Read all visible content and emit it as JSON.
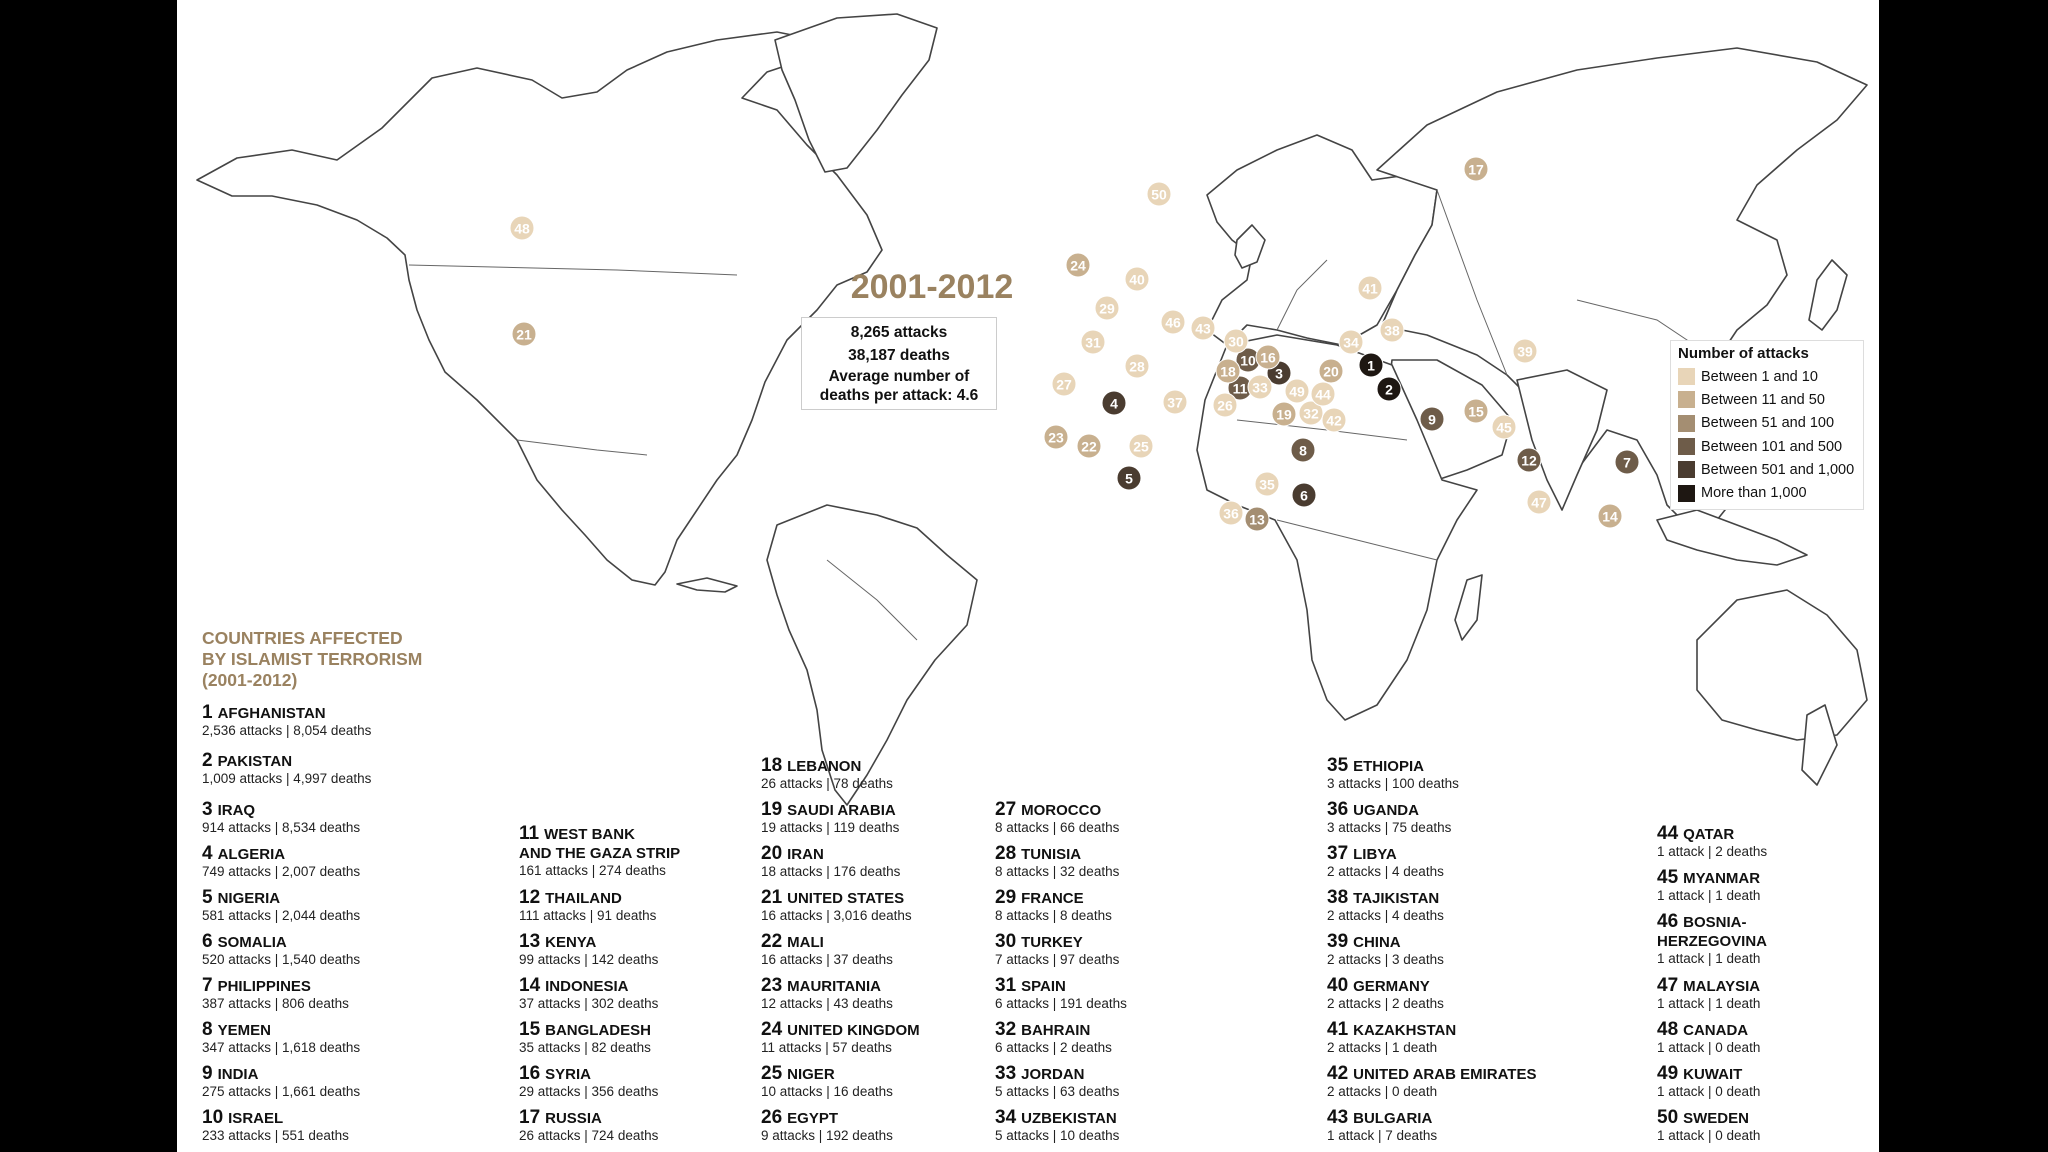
{
  "headline": "2001-2012",
  "stats": {
    "attacks": "8,265 attacks",
    "deaths": "38,187 deaths",
    "avg_line1": "Average number of",
    "avg_line2": "deaths per attack: 4.6"
  },
  "legend": {
    "title": "Number of attacks",
    "items": [
      {
        "label": "Between 1 and 10",
        "color": "#e8d5b8"
      },
      {
        "label": "Between 11 and 50",
        "color": "#c8b08f"
      },
      {
        "label": "Between 51 and 100",
        "color": "#a48e72"
      },
      {
        "label": "Between 101 and 500",
        "color": "#6e5c49"
      },
      {
        "label": "Between 501 and 1,000",
        "color": "#4a3c30"
      },
      {
        "label": "More than 1,000",
        "color": "#1e1712"
      }
    ]
  },
  "list_title": [
    "COUNTRIES AFFECTED",
    "BY ISLAMIST TERRORISM",
    "(2001-2012)"
  ],
  "countries": [
    {
      "rank": "1",
      "name": [
        "AFGHANISTAN"
      ],
      "stats": "2,536 attacks | 8,054 deaths",
      "tier": 5
    },
    {
      "rank": "2",
      "name": [
        "PAKISTAN"
      ],
      "stats": "1,009 attacks | 4,997 deaths",
      "tier": 5
    },
    {
      "rank": "3",
      "name": [
        "IRAQ"
      ],
      "stats": "914 attacks | 8,534 deaths",
      "tier": 4
    },
    {
      "rank": "4",
      "name": [
        "ALGERIA"
      ],
      "stats": "749 attacks | 2,007 deaths",
      "tier": 4
    },
    {
      "rank": "5",
      "name": [
        "NIGERIA"
      ],
      "stats": "581 attacks | 2,044 deaths",
      "tier": 4
    },
    {
      "rank": "6",
      "name": [
        "SOMALIA"
      ],
      "stats": "520 attacks | 1,540 deaths",
      "tier": 4
    },
    {
      "rank": "7",
      "name": [
        "PHILIPPINES"
      ],
      "stats": "387 attacks | 806 deaths",
      "tier": 3
    },
    {
      "rank": "8",
      "name": [
        "YEMEN"
      ],
      "stats": "347 attacks | 1,618 deaths",
      "tier": 3
    },
    {
      "rank": "9",
      "name": [
        "INDIA"
      ],
      "stats": "275 attacks | 1,661 deaths",
      "tier": 3
    },
    {
      "rank": "10",
      "name": [
        "ISRAEL"
      ],
      "stats": "233 attacks | 551 deaths",
      "tier": 3
    },
    {
      "rank": "11",
      "name": [
        "WEST BANK",
        "AND THE GAZA STRIP"
      ],
      "stats": "161 attacks | 274 deaths",
      "tier": 3
    },
    {
      "rank": "12",
      "name": [
        "THAILAND"
      ],
      "stats": "111 attacks | 91 deaths",
      "tier": 3
    },
    {
      "rank": "13",
      "name": [
        "KENYA"
      ],
      "stats": "99 attacks | 142 deaths",
      "tier": 2
    },
    {
      "rank": "14",
      "name": [
        "INDONESIA"
      ],
      "stats": "37 attacks | 302 deaths",
      "tier": 1
    },
    {
      "rank": "15",
      "name": [
        "BANGLADESH"
      ],
      "stats": "35 attacks | 82 deaths",
      "tier": 1
    },
    {
      "rank": "16",
      "name": [
        "SYRIA"
      ],
      "stats": "29 attacks | 356 deaths",
      "tier": 1
    },
    {
      "rank": "17",
      "name": [
        "RUSSIA"
      ],
      "stats": "26 attacks | 724 deaths",
      "tier": 1
    },
    {
      "rank": "18",
      "name": [
        "LEBANON"
      ],
      "stats": "26 attacks | 78 deaths",
      "tier": 1
    },
    {
      "rank": "19",
      "name": [
        "SAUDI ARABIA"
      ],
      "stats": "19 attacks | 119 deaths",
      "tier": 1
    },
    {
      "rank": "20",
      "name": [
        "IRAN"
      ],
      "stats": "18 attacks | 176 deaths",
      "tier": 1
    },
    {
      "rank": "21",
      "name": [
        "UNITED STATES"
      ],
      "stats": "16 attacks | 3,016 deaths",
      "tier": 1
    },
    {
      "rank": "22",
      "name": [
        "MALI"
      ],
      "stats": "16 attacks | 37 deaths",
      "tier": 1
    },
    {
      "rank": "23",
      "name": [
        "MAURITANIA"
      ],
      "stats": "12 attacks | 43 deaths",
      "tier": 1
    },
    {
      "rank": "24",
      "name": [
        "UNITED KINGDOM"
      ],
      "stats": "11 attacks | 57 deaths",
      "tier": 1
    },
    {
      "rank": "25",
      "name": [
        "NIGER"
      ],
      "stats": "10 attacks | 16 deaths",
      "tier": 0
    },
    {
      "rank": "26",
      "name": [
        "EGYPT"
      ],
      "stats": "9 attacks | 192 deaths",
      "tier": 0
    },
    {
      "rank": "27",
      "name": [
        "MOROCCO"
      ],
      "stats": "8 attacks | 66 deaths",
      "tier": 0
    },
    {
      "rank": "28",
      "name": [
        "TUNISIA"
      ],
      "stats": "8 attacks | 32 deaths",
      "tier": 0
    },
    {
      "rank": "29",
      "name": [
        "FRANCE"
      ],
      "stats": "8 attacks | 8 deaths",
      "tier": 0
    },
    {
      "rank": "30",
      "name": [
        "TURKEY"
      ],
      "stats": "7 attacks | 97 deaths",
      "tier": 0
    },
    {
      "rank": "31",
      "name": [
        "SPAIN"
      ],
      "stats": "6 attacks | 191 deaths",
      "tier": 0
    },
    {
      "rank": "32",
      "name": [
        "BAHRAIN"
      ],
      "stats": "6 attacks | 2 deaths",
      "tier": 0
    },
    {
      "rank": "33",
      "name": [
        "JORDAN"
      ],
      "stats": "5 attacks | 63 deaths",
      "tier": 0
    },
    {
      "rank": "34",
      "name": [
        "UZBEKISTAN"
      ],
      "stats": "5 attacks | 10 deaths",
      "tier": 0
    },
    {
      "rank": "35",
      "name": [
        "ETHIOPIA"
      ],
      "stats": "3 attacks | 100 deaths",
      "tier": 0
    },
    {
      "rank": "36",
      "name": [
        "UGANDA"
      ],
      "stats": "3 attacks | 75 deaths",
      "tier": 0
    },
    {
      "rank": "37",
      "name": [
        "LIBYA"
      ],
      "stats": "2 attacks | 4 deaths",
      "tier": 0
    },
    {
      "rank": "38",
      "name": [
        "TAJIKISTAN"
      ],
      "stats": "2 attacks | 4 deaths",
      "tier": 0
    },
    {
      "rank": "39",
      "name": [
        "CHINA"
      ],
      "stats": "2 attacks | 3 deaths",
      "tier": 0
    },
    {
      "rank": "40",
      "name": [
        "GERMANY"
      ],
      "stats": "2 attacks | 2 deaths",
      "tier": 0
    },
    {
      "rank": "41",
      "name": [
        "KAZAKHSTAN"
      ],
      "stats": "2 attacks | 1 death",
      "tier": 0
    },
    {
      "rank": "42",
      "name": [
        "UNITED ARAB EMIRATES"
      ],
      "stats": "2 attacks | 0 death",
      "tier": 0
    },
    {
      "rank": "43",
      "name": [
        "BULGARIA"
      ],
      "stats": "1 attack | 7 deaths",
      "tier": 0
    },
    {
      "rank": "44",
      "name": [
        "QATAR"
      ],
      "stats": "1 attack | 2 deaths",
      "tier": 0
    },
    {
      "rank": "45",
      "name": [
        "MYANMAR"
      ],
      "stats": "1 attack | 1 death",
      "tier": 0
    },
    {
      "rank": "46",
      "name": [
        "BOSNIA-",
        "HERZEGOVINA"
      ],
      "stats": "1 attack | 1 death",
      "tier": 0
    },
    {
      "rank": "47",
      "name": [
        "MALAYSIA"
      ],
      "stats": "1 attack | 1 death",
      "tier": 0
    },
    {
      "rank": "48",
      "name": [
        "CANADA"
      ],
      "stats": "1 attack | 0 death",
      "tier": 0
    },
    {
      "rank": "49",
      "name": [
        "KUWAIT"
      ],
      "stats": "1 attack | 0 death",
      "tier": 0
    },
    {
      "rank": "50",
      "name": [
        "SWEDEN"
      ],
      "stats": "1 attack | 0 death",
      "tier": 0
    }
  ]
}
